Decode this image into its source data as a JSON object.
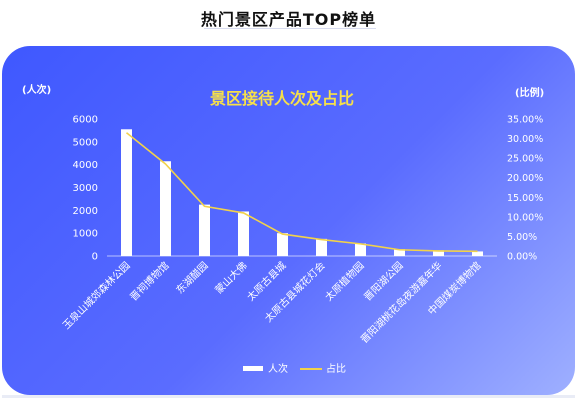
{
  "page": {
    "title": "热门景区产品TOP榜单"
  },
  "chart_data": {
    "type": "bar",
    "title": "景区接待人次及占比",
    "left_axis_label": "(人次)",
    "right_axis_label": "(比例)",
    "categories": [
      "玉泉山城郊森林公园",
      "晋祠博物馆",
      "东湖醋园",
      "蒙山大佛",
      "太原古县城",
      "太原古县城花灯会",
      "太原植物园",
      "晋阳湖公园",
      "晋阳湖桃花岛夜游嘉年华",
      "中国煤炭博物馆"
    ],
    "series": [
      {
        "name": "人次",
        "type": "bar",
        "axis": "left",
        "values": [
          5550,
          4150,
          2250,
          1950,
          1000,
          750,
          550,
          300,
          250,
          200
        ]
      },
      {
        "name": "占比",
        "type": "line",
        "axis": "right",
        "values": [
          31.5,
          23.5,
          12.7,
          11.0,
          5.6,
          4.2,
          3.1,
          1.6,
          1.3,
          1.2
        ]
      }
    ],
    "y_left": {
      "min": 0,
      "max": 6000,
      "ticks": [
        "0",
        "1000",
        "2000",
        "3000",
        "4000",
        "5000",
        "6000"
      ]
    },
    "y_right": {
      "min": 0,
      "max": 35,
      "ticks": [
        "0.00%",
        "5.00%",
        "10.00%",
        "15.00%",
        "20.00%",
        "25.00%",
        "30.00%",
        "35.00%"
      ]
    },
    "grid": false,
    "legend_position": "bottom",
    "colors": {
      "bar": "#ffffff",
      "line": "#f2d24a",
      "title": "#f6e04a",
      "background": "#4a5cff"
    }
  }
}
